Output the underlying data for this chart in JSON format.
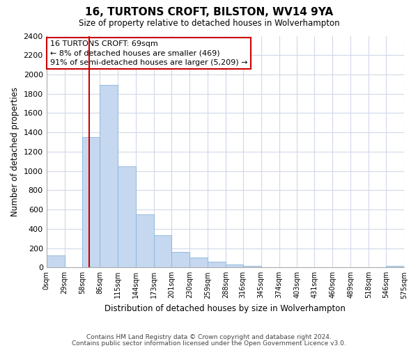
{
  "title": "16, TURTONS CROFT, BILSTON, WV14 9YA",
  "subtitle": "Size of property relative to detached houses in Wolverhampton",
  "xlabel": "Distribution of detached houses by size in Wolverhampton",
  "ylabel": "Number of detached properties",
  "bin_edges": [
    0,
    29,
    58,
    86,
    115,
    144,
    173,
    201,
    230,
    259,
    288,
    316,
    345,
    374,
    403,
    431,
    460,
    489,
    518,
    546,
    575
  ],
  "bin_labels": [
    "0sqm",
    "29sqm",
    "58sqm",
    "86sqm",
    "115sqm",
    "144sqm",
    "173sqm",
    "201sqm",
    "230sqm",
    "259sqm",
    "288sqm",
    "316sqm",
    "345sqm",
    "374sqm",
    "403sqm",
    "431sqm",
    "460sqm",
    "489sqm",
    "518sqm",
    "546sqm",
    "575sqm"
  ],
  "counts": [
    125,
    0,
    1350,
    1890,
    1050,
    550,
    335,
    160,
    105,
    60,
    28,
    15,
    5,
    2,
    1,
    0,
    0,
    0,
    0,
    15
  ],
  "bar_color": "#c5d8f0",
  "bar_edge_color": "#8ab4d8",
  "ylim": [
    0,
    2400
  ],
  "yticks": [
    0,
    200,
    400,
    600,
    800,
    1000,
    1200,
    1400,
    1600,
    1800,
    2000,
    2200,
    2400
  ],
  "property_line_x": 69,
  "property_line_color": "#cc0000",
  "annotation_title": "16 TURTONS CROFT: 69sqm",
  "annotation_line1": "← 8% of detached houses are smaller (469)",
  "annotation_line2": "91% of semi-detached houses are larger (5,209) →",
  "footer_line1": "Contains HM Land Registry data © Crown copyright and database right 2024.",
  "footer_line2": "Contains public sector information licensed under the Open Government Licence v3.0.",
  "background_color": "#ffffff",
  "grid_color": "#d0d8e8"
}
